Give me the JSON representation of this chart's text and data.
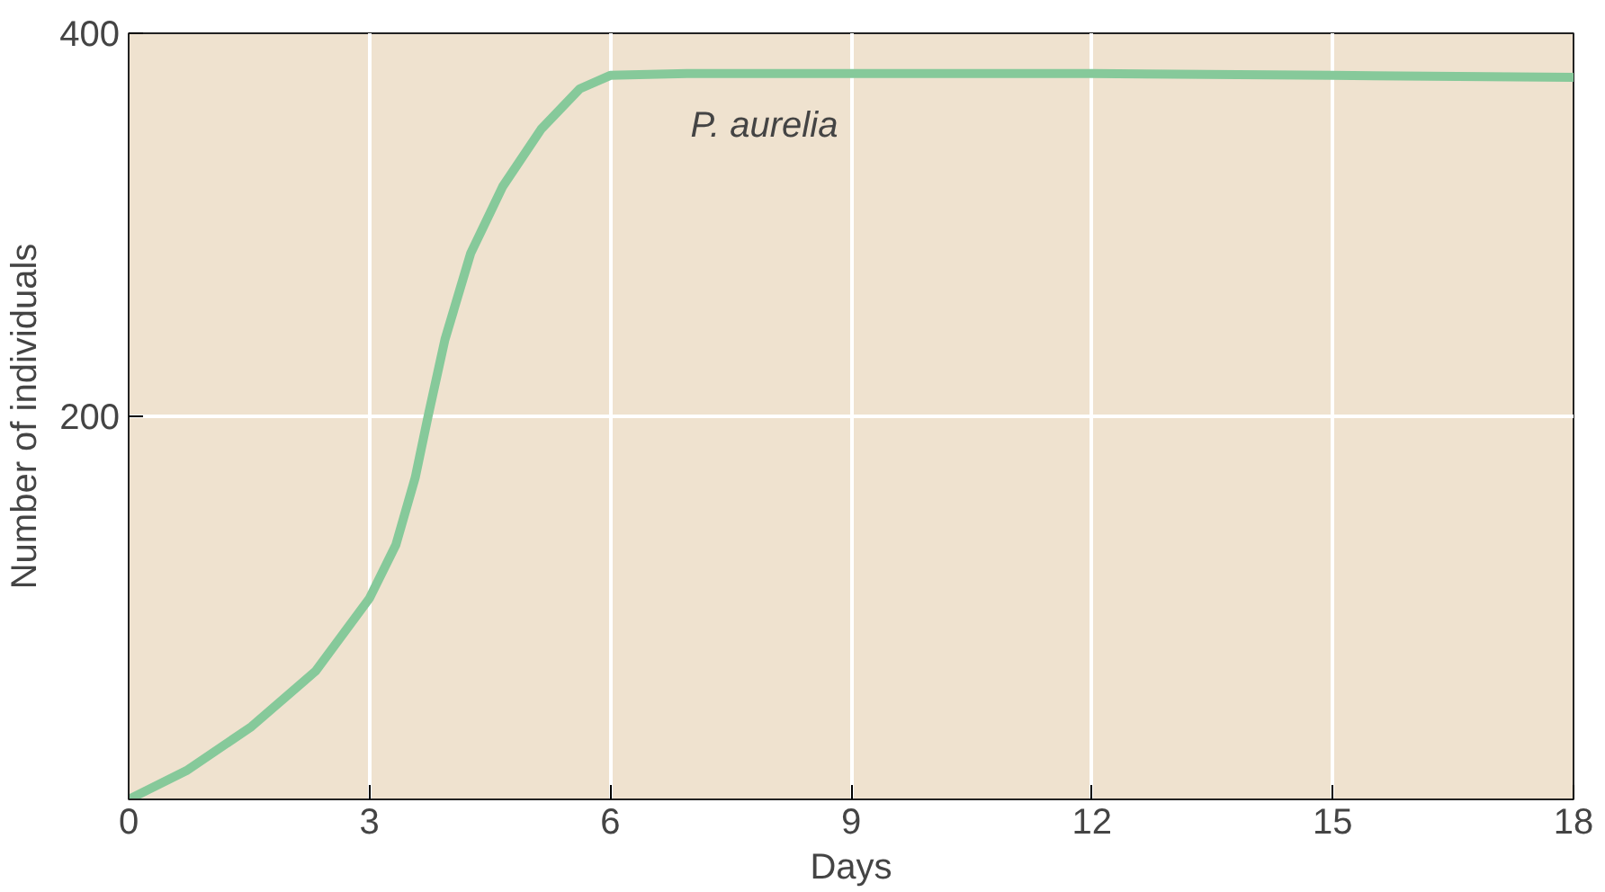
{
  "chart_data": {
    "type": "line",
    "xlabel": "Days",
    "ylabel": "Number of individuals",
    "xlim": [
      0,
      18
    ],
    "ylim": [
      0,
      400
    ],
    "xticks": [
      0,
      3,
      6,
      9,
      12,
      15,
      18
    ],
    "yticks": [
      200,
      400
    ],
    "grid": true,
    "legend": false,
    "marker": "none",
    "line_style": "solid",
    "x": [
      0,
      0.72,
      1.53,
      2.33,
      3,
      3.33,
      3.57,
      3.73,
      3.94,
      4.26,
      4.66,
      5.14,
      5.62,
      6,
      7,
      9,
      12,
      15,
      18
    ],
    "series": [
      {
        "name": "P. aurelia",
        "color": "#86c99a",
        "values": [
          0,
          15,
          38,
          67,
          105,
          133,
          168,
          200,
          240,
          285,
          320,
          350,
          371,
          378,
          379,
          379,
          379,
          378,
          377
        ]
      }
    ]
  }
}
